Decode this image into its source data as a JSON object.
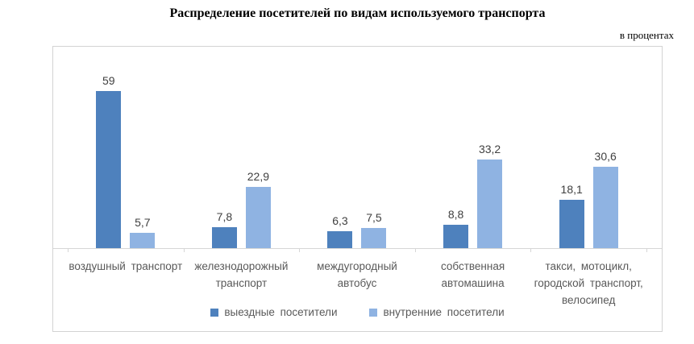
{
  "chart_data": {
    "type": "bar",
    "title": "Распределение посетителей по видам используемого транспорта",
    "subtitle": "в процентах",
    "categories": [
      "воздушный транспорт",
      "железнодорожный транспорт",
      "междугородный автобус",
      "собственная автомашина",
      "такси, мотоцикл, городской транспорт, велосипед"
    ],
    "series": [
      {
        "name": "выездные посетители",
        "color": "#4e81bd",
        "values": [
          59,
          7.8,
          6.3,
          8.8,
          18.1
        ],
        "labels": [
          "59",
          "7,8",
          "6,3",
          "8,8",
          "18,1"
        ]
      },
      {
        "name": "внутренние посетители",
        "color": "#8fb3e2",
        "values": [
          5.7,
          22.9,
          7.5,
          33.2,
          30.6
        ],
        "labels": [
          "5,7",
          "22,9",
          "7,5",
          "33,2",
          "30,6"
        ]
      }
    ],
    "ylim": [
      0,
      75
    ],
    "grid": false,
    "value_labels_shown": true,
    "legend_position": "bottom-center",
    "axis_color": "#d6d6d6",
    "value_label_color": "#404040",
    "category_label_color": "#595959"
  }
}
